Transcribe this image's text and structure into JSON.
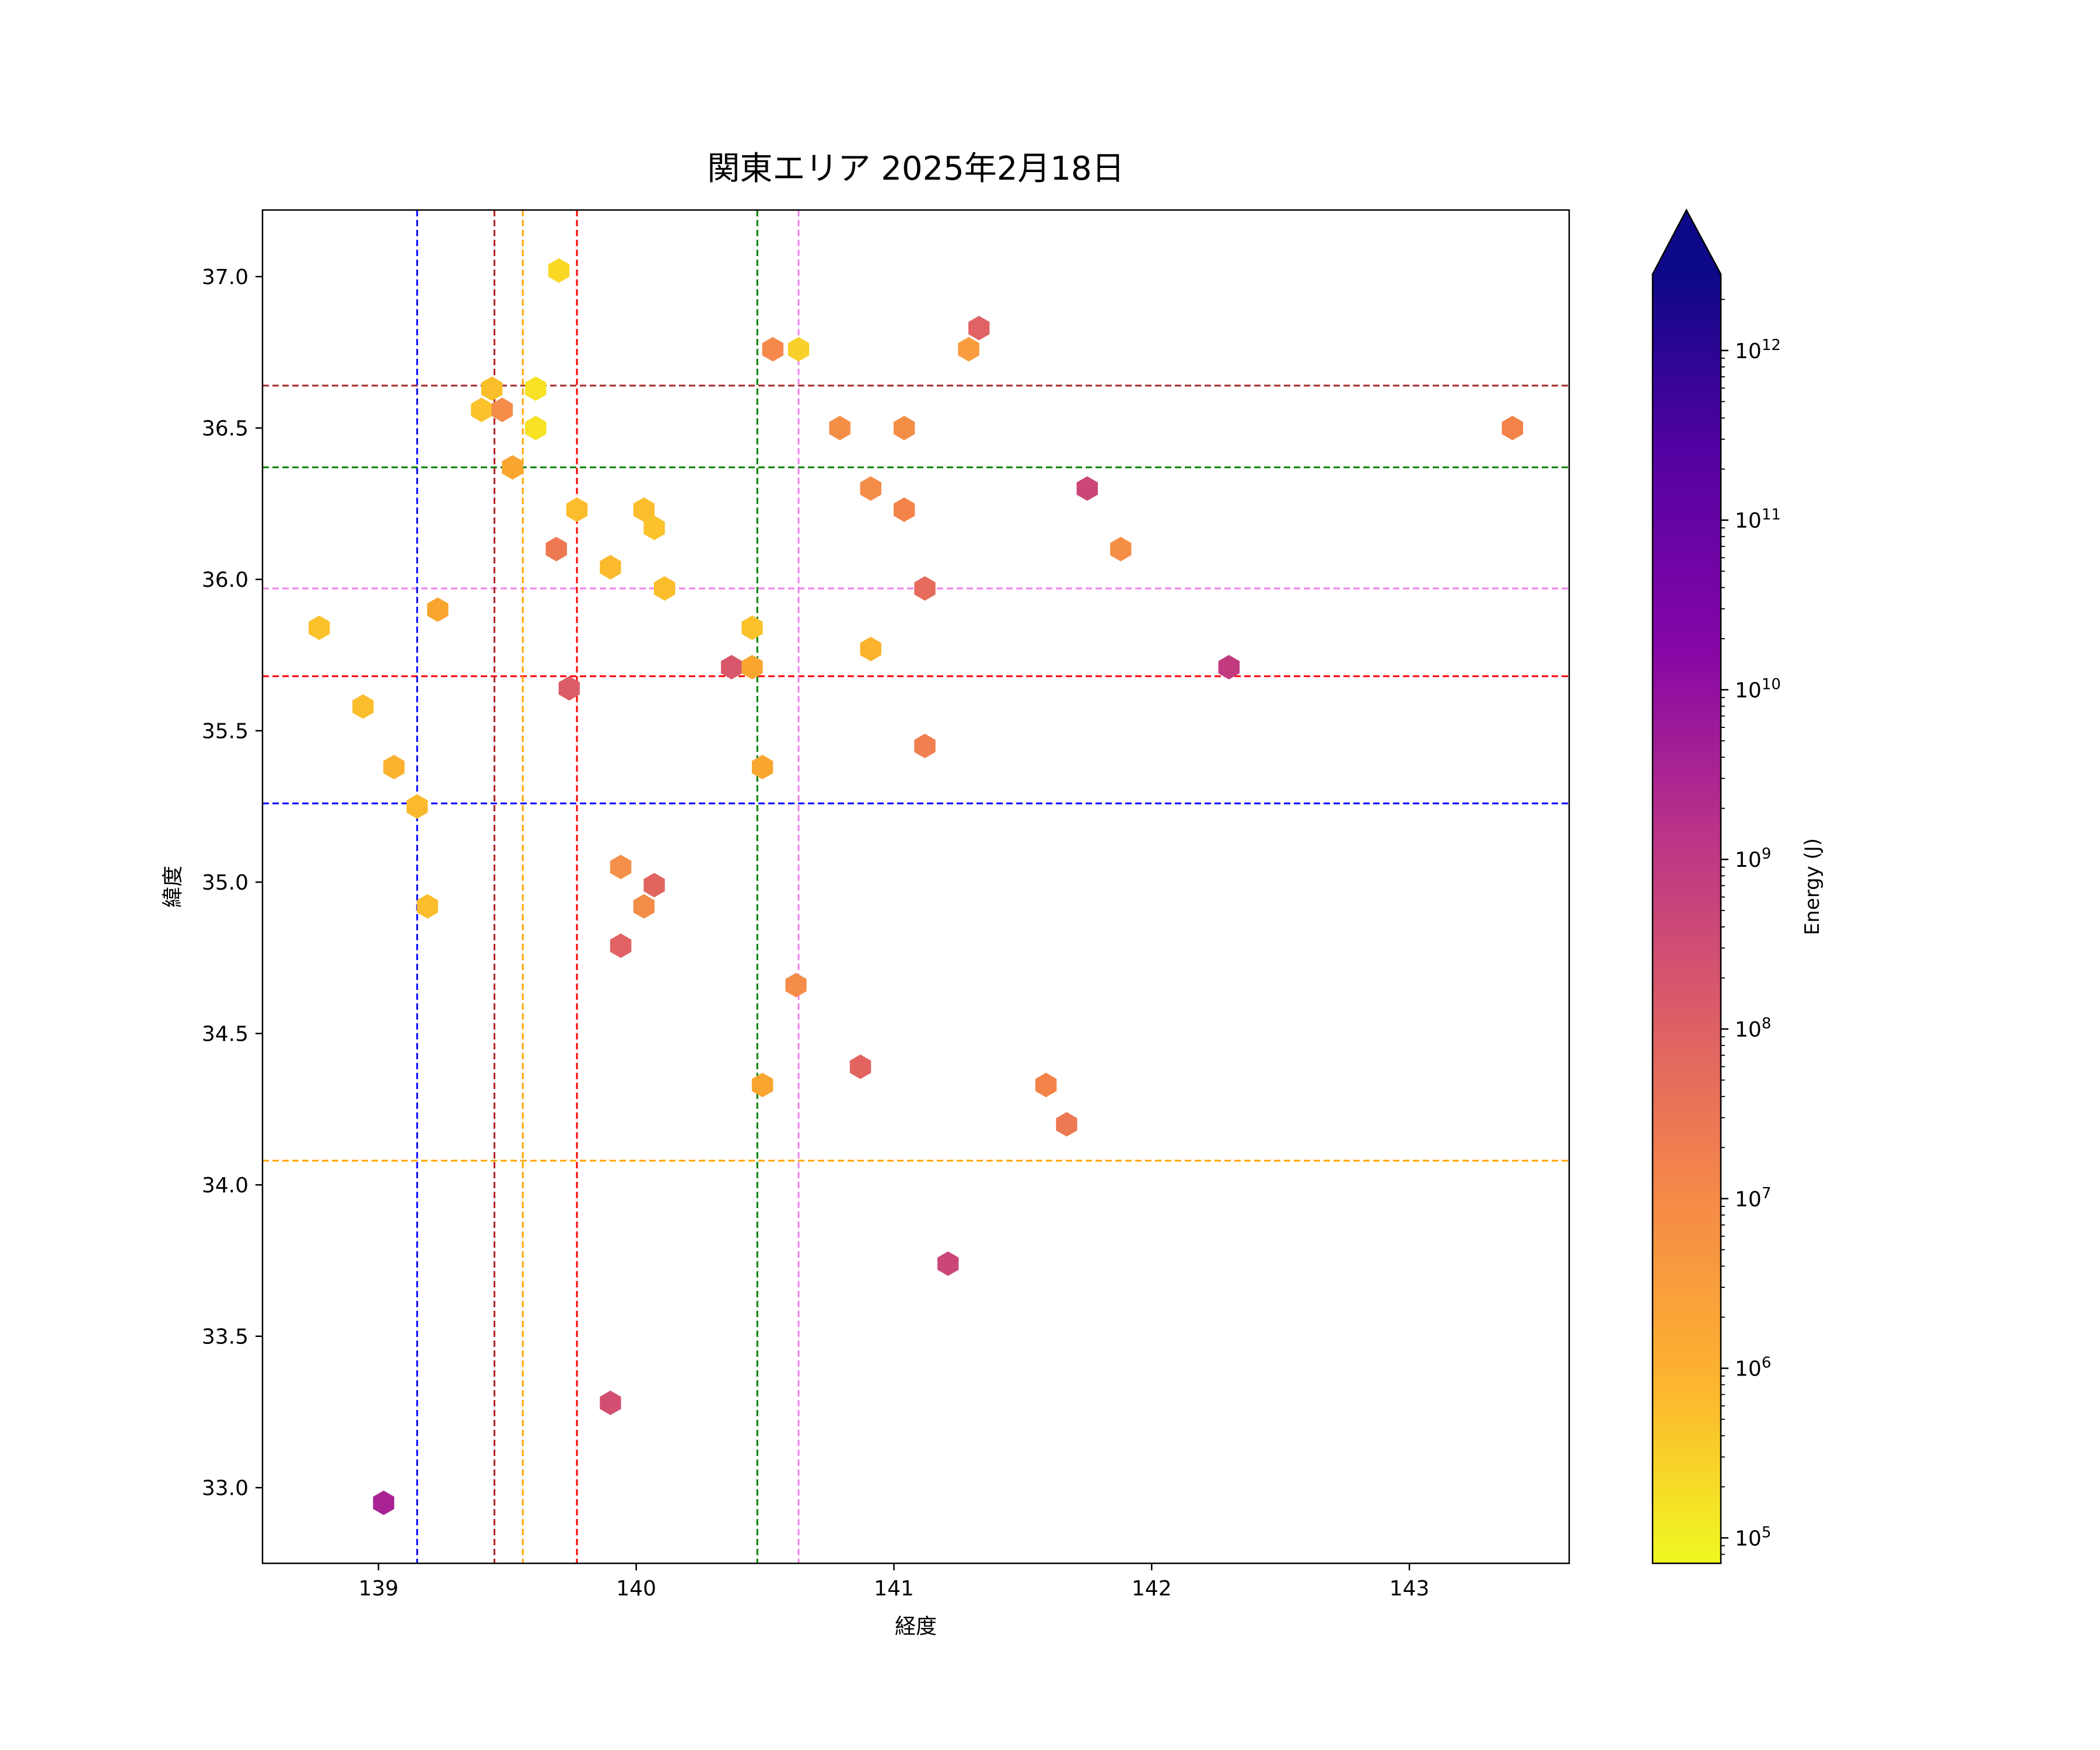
{
  "chart_data": {
    "type": "hexbin-scatter",
    "title": "関東エリア 2025年2月18日",
    "xlabel": "経度",
    "ylabel": "緯度",
    "xlim": [
      138.55,
      143.62
    ],
    "ylim": [
      32.75,
      37.22
    ],
    "xticks": [
      139,
      140,
      141,
      142,
      143
    ],
    "yticks": [
      33.0,
      33.5,
      34.0,
      34.5,
      35.0,
      35.5,
      36.0,
      36.5,
      37.0
    ],
    "grid": false,
    "colorbar": {
      "label": "Energy (J)",
      "scale": "log",
      "min_exp": 4.85,
      "max_exp": 12.45,
      "tick_exps": [
        5,
        6,
        7,
        8,
        9,
        10,
        11,
        12
      ],
      "tick_base": "10",
      "extend": "max",
      "colormap": "plasma_r",
      "colors": [
        "#f0f921",
        "#fdb42f",
        "#f48849",
        "#db5c68",
        "#b93289",
        "#8606a6",
        "#5402a3",
        "#0d0887"
      ]
    },
    "vertical_lines": [
      {
        "x": 139.15,
        "color": "#0000ff"
      },
      {
        "x": 139.45,
        "color": "#b22222"
      },
      {
        "x": 139.56,
        "color": "#ffa500"
      },
      {
        "x": 139.77,
        "color": "#ff0000"
      },
      {
        "x": 140.47,
        "color": "#008000"
      },
      {
        "x": 140.63,
        "color": "#ee82ee"
      }
    ],
    "horizontal_lines": [
      {
        "y": 36.64,
        "color": "#a52a2a"
      },
      {
        "y": 36.37,
        "color": "#008000"
      },
      {
        "y": 35.97,
        "color": "#ee82ee"
      },
      {
        "y": 35.68,
        "color": "#ff0000"
      },
      {
        "y": 35.26,
        "color": "#0000ff"
      },
      {
        "y": 34.08,
        "color": "#ffa500"
      }
    ],
    "points": [
      {
        "x": 139.7,
        "y": 37.02,
        "c": "#f9d824"
      },
      {
        "x": 140.53,
        "y": 36.76,
        "c": "#f5894b"
      },
      {
        "x": 140.63,
        "y": 36.76,
        "c": "#f9d02a"
      },
      {
        "x": 141.29,
        "y": 36.76,
        "c": "#f89c3d"
      },
      {
        "x": 141.33,
        "y": 36.83,
        "c": "#e06264"
      },
      {
        "x": 139.44,
        "y": 36.63,
        "c": "#fbbe2b"
      },
      {
        "x": 139.61,
        "y": 36.63,
        "c": "#f7e225"
      },
      {
        "x": 139.4,
        "y": 36.56,
        "c": "#fbc22c"
      },
      {
        "x": 139.48,
        "y": 36.56,
        "c": "#f48c4a"
      },
      {
        "x": 139.61,
        "y": 36.5,
        "c": "#f7e225"
      },
      {
        "x": 140.79,
        "y": 36.5,
        "c": "#f48e46"
      },
      {
        "x": 141.04,
        "y": 36.5,
        "c": "#f48e46"
      },
      {
        "x": 143.4,
        "y": 36.5,
        "c": "#f38349"
      },
      {
        "x": 139.52,
        "y": 36.37,
        "c": "#f9a631"
      },
      {
        "x": 140.91,
        "y": 36.3,
        "c": "#f48c4a"
      },
      {
        "x": 141.75,
        "y": 36.3,
        "c": "#cc4779"
      },
      {
        "x": 139.77,
        "y": 36.23,
        "c": "#fbbd2c"
      },
      {
        "x": 140.03,
        "y": 36.23,
        "c": "#fbbd2c"
      },
      {
        "x": 141.04,
        "y": 36.23,
        "c": "#f38349"
      },
      {
        "x": 140.07,
        "y": 36.17,
        "c": "#fbc22c"
      },
      {
        "x": 139.69,
        "y": 36.1,
        "c": "#ed7953"
      },
      {
        "x": 141.88,
        "y": 36.1,
        "c": "#f48e46"
      },
      {
        "x": 139.9,
        "y": 36.04,
        "c": "#fbba2d"
      },
      {
        "x": 140.11,
        "y": 35.97,
        "c": "#fbbe2b"
      },
      {
        "x": 141.12,
        "y": 35.97,
        "c": "#e56b5d"
      },
      {
        "x": 139.23,
        "y": 35.9,
        "c": "#f9a631"
      },
      {
        "x": 138.77,
        "y": 35.84,
        "c": "#fbc22c"
      },
      {
        "x": 140.45,
        "y": 35.84,
        "c": "#fbc22c"
      },
      {
        "x": 140.91,
        "y": 35.77,
        "c": "#fbb22f"
      },
      {
        "x": 140.37,
        "y": 35.71,
        "c": "#d8576b"
      },
      {
        "x": 140.45,
        "y": 35.71,
        "c": "#f9a631"
      },
      {
        "x": 142.3,
        "y": 35.71,
        "c": "#c23b81"
      },
      {
        "x": 139.74,
        "y": 35.64,
        "c": "#dc5d67"
      },
      {
        "x": 138.94,
        "y": 35.58,
        "c": "#fbbd2c"
      },
      {
        "x": 141.12,
        "y": 35.45,
        "c": "#f08050"
      },
      {
        "x": 139.06,
        "y": 35.38,
        "c": "#fbb22f"
      },
      {
        "x": 140.49,
        "y": 35.38,
        "c": "#f9a631"
      },
      {
        "x": 139.15,
        "y": 35.25,
        "c": "#fbba2d"
      },
      {
        "x": 139.94,
        "y": 35.05,
        "c": "#f5904a"
      },
      {
        "x": 140.07,
        "y": 34.99,
        "c": "#e1645f"
      },
      {
        "x": 139.19,
        "y": 34.92,
        "c": "#fbbd2c"
      },
      {
        "x": 140.03,
        "y": 34.92,
        "c": "#f48c4a"
      },
      {
        "x": 139.94,
        "y": 34.79,
        "c": "#e06264"
      },
      {
        "x": 140.62,
        "y": 34.66,
        "c": "#f48c4a"
      },
      {
        "x": 140.87,
        "y": 34.39,
        "c": "#e1645f"
      },
      {
        "x": 140.49,
        "y": 34.33,
        "c": "#f9a631"
      },
      {
        "x": 141.59,
        "y": 34.33,
        "c": "#f38349"
      },
      {
        "x": 141.67,
        "y": 34.2,
        "c": "#ed7953"
      },
      {
        "x": 141.21,
        "y": 33.74,
        "c": "#cc4779"
      },
      {
        "x": 139.9,
        "y": 33.28,
        "c": "#d24f71"
      },
      {
        "x": 139.02,
        "y": 32.95,
        "c": "#a92395"
      }
    ]
  }
}
